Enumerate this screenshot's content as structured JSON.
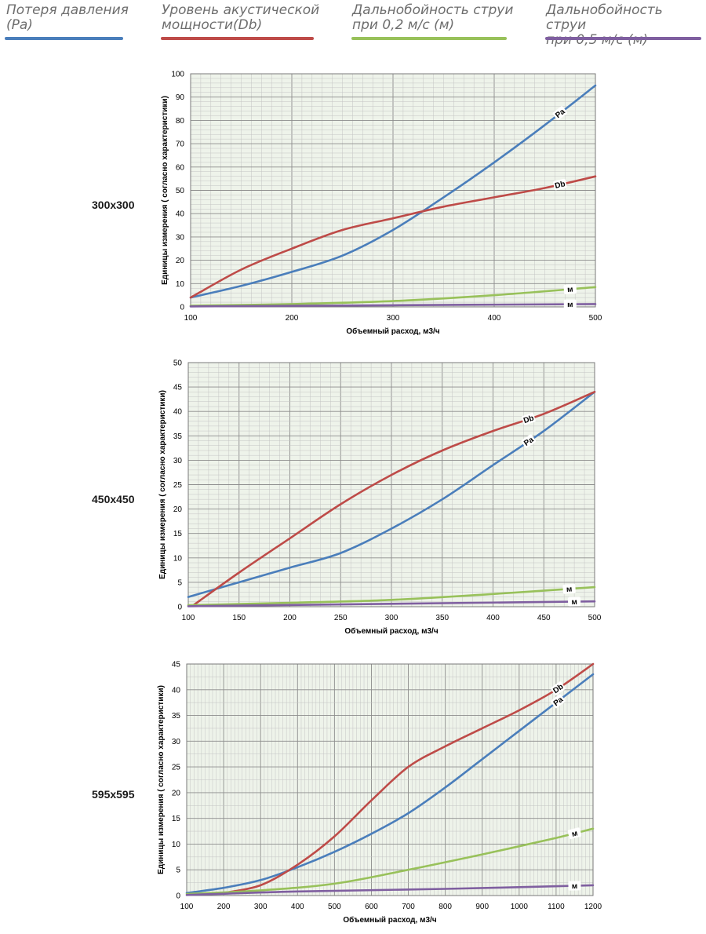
{
  "legend": [
    {
      "text": "Потеря давления\n(Pa)",
      "color": "#4a7ebb"
    },
    {
      "text": "Уровень акустической\nмощности(Db)",
      "color": "#be4b48"
    },
    {
      "text": "Дальнобойность струи\nпри 0,2 м/с (м)",
      "color": "#98c15a"
    },
    {
      "text": "Дальнобойность струи\nпри 0,5 м/с (м)",
      "color": "#7f5fa0"
    }
  ],
  "rows": [
    {
      "label": "300x300"
    },
    {
      "label": "450x450"
    },
    {
      "label": "595x595"
    }
  ],
  "chart_data": [
    {
      "type": "line",
      "xlabel": "Объемный расход, м3/ч",
      "ylabel": "Единицы измерения ( согласно характеристики)",
      "xlim": [
        100,
        500
      ],
      "ylim": [
        0,
        100
      ],
      "xticks": [
        100,
        200,
        300,
        400,
        500
      ],
      "yticks": [
        0,
        10,
        20,
        30,
        40,
        50,
        60,
        70,
        80,
        90,
        100
      ],
      "grid": true,
      "series": [
        {
          "name": "Pa",
          "color": "#4a7ebb",
          "label_at": 465,
          "x": [
            100,
            150,
            200,
            250,
            300,
            350,
            400,
            450,
            500
          ],
          "y": [
            4,
            9,
            15,
            22,
            33,
            47,
            62,
            78,
            95
          ]
        },
        {
          "name": "Db",
          "color": "#be4b48",
          "label_at": 465,
          "x": [
            100,
            150,
            200,
            250,
            300,
            350,
            400,
            450,
            500
          ],
          "y": [
            4,
            16,
            25,
            33,
            38,
            43,
            47,
            51,
            56
          ]
        },
        {
          "name": "м",
          "color": "#98c15a",
          "label_at": 475,
          "x": [
            100,
            200,
            300,
            400,
            500
          ],
          "y": [
            0.5,
            1.2,
            2.5,
            5,
            8.5
          ]
        },
        {
          "name": "м",
          "color": "#7f5fa0",
          "label_at": 475,
          "x": [
            100,
            300,
            500
          ],
          "y": [
            0.2,
            0.7,
            1.2
          ]
        }
      ]
    },
    {
      "type": "line",
      "xlabel": "Объемный расход, м3/ч",
      "ylabel": "Единицы измерения ( согласно характеристики)",
      "xlim": [
        100,
        500
      ],
      "ylim": [
        0,
        50
      ],
      "xticks": [
        100,
        150,
        200,
        250,
        300,
        350,
        400,
        450,
        500
      ],
      "yticks": [
        0,
        5,
        10,
        15,
        20,
        25,
        30,
        35,
        40,
        45,
        50
      ],
      "grid": true,
      "series": [
        {
          "name": "Pa",
          "color": "#4a7ebb",
          "label_at": 435,
          "x": [
            100,
            150,
            200,
            250,
            300,
            350,
            400,
            450,
            500
          ],
          "y": [
            2,
            5,
            8,
            11,
            16,
            22,
            29,
            36,
            44
          ]
        },
        {
          "name": "Db",
          "color": "#be4b48",
          "label_at": 435,
          "x": [
            105,
            150,
            200,
            250,
            300,
            350,
            400,
            450,
            500
          ],
          "y": [
            0.3,
            7,
            14,
            21,
            27,
            32,
            36,
            39.5,
            44
          ]
        },
        {
          "name": "м",
          "color": "#98c15a",
          "label_at": 475,
          "x": [
            100,
            200,
            300,
            400,
            500
          ],
          "y": [
            0.3,
            0.8,
            1.4,
            2.6,
            4
          ]
        },
        {
          "name": "м",
          "color": "#7f5fa0",
          "label_at": 480,
          "x": [
            100,
            300,
            500
          ],
          "y": [
            0.1,
            0.6,
            1.1
          ]
        }
      ]
    },
    {
      "type": "line",
      "xlabel": "Объемный расход, м3/ч",
      "ylabel": "Единицы измерения ( согласно характеристики)",
      "xlim": [
        100,
        1200
      ],
      "ylim": [
        0,
        45
      ],
      "xticks": [
        100,
        200,
        300,
        400,
        500,
        600,
        700,
        800,
        900,
        1000,
        1100,
        1200
      ],
      "yticks": [
        0,
        5,
        10,
        15,
        20,
        25,
        30,
        35,
        40,
        45
      ],
      "grid": true,
      "series": [
        {
          "name": "Pa",
          "color": "#4a7ebb",
          "label_at": 1105,
          "x": [
            100,
            200,
            300,
            400,
            500,
            600,
            700,
            800,
            900,
            1000,
            1100,
            1200
          ],
          "y": [
            0.5,
            1.5,
            3,
            5.5,
            8.5,
            12,
            16,
            21,
            26.5,
            32,
            37.5,
            43
          ]
        },
        {
          "name": "Db",
          "color": "#be4b48",
          "label_at": 1105,
          "x": [
            200,
            300,
            400,
            500,
            600,
            700,
            800,
            900,
            1000,
            1100,
            1200
          ],
          "y": [
            0.5,
            2,
            6,
            11.5,
            18.5,
            25,
            29,
            32.5,
            36,
            40,
            45
          ]
        },
        {
          "name": "м",
          "color": "#98c15a",
          "label_at": 1150,
          "x": [
            100,
            300,
            500,
            700,
            900,
            1100,
            1200
          ],
          "y": [
            0.3,
            1,
            2.3,
            5,
            8,
            11.2,
            13
          ]
        },
        {
          "name": "м",
          "color": "#7f5fa0",
          "label_at": 1150,
          "x": [
            100,
            400,
            800,
            1200
          ],
          "y": [
            0.1,
            0.8,
            1.3,
            2
          ]
        }
      ]
    }
  ]
}
